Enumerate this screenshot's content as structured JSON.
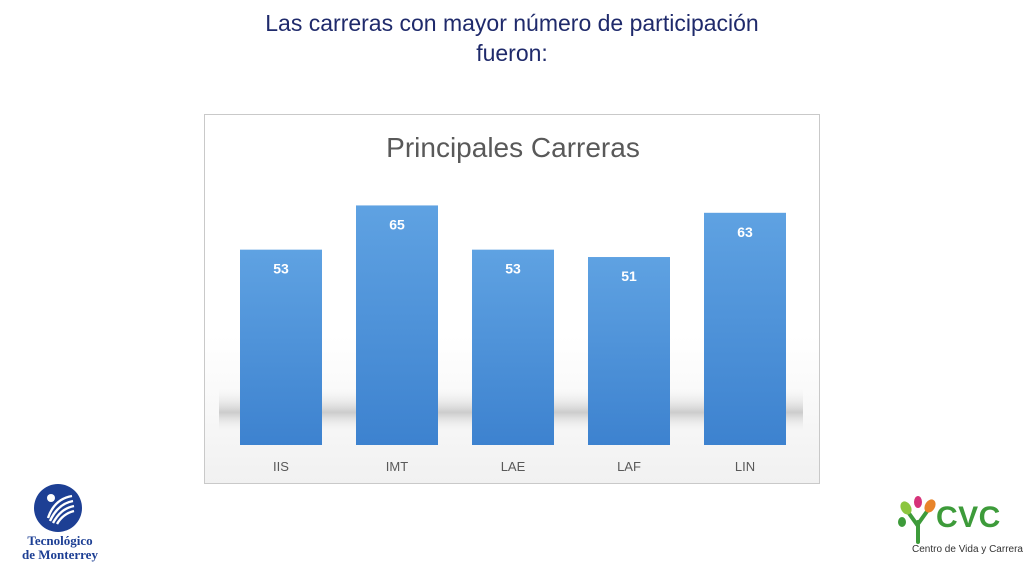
{
  "slide": {
    "title_line1": "Las carreras con mayor número de participación",
    "title_line2": "fueron:"
  },
  "chart_data": {
    "type": "bar",
    "title": "Principales Carreras",
    "categories": [
      "IIS",
      "IMT",
      "LAE",
      "LAF",
      "LIN"
    ],
    "values": [
      53,
      65,
      53,
      51,
      63
    ],
    "ylim": [
      0,
      70
    ],
    "grid": false,
    "legend": "none",
    "bar_color": "#4a8fd6",
    "bar_color_light": "#5fa2e2",
    "label_color": "#ffffff",
    "axis_label_color": "#595959",
    "title_color": "#595959"
  },
  "logos": {
    "tec_line1": "Tecnológico",
    "tec_line2": "de Monterrey",
    "tec_color": "#1d3f94",
    "cvc_word": "CVC",
    "cvc_subtitle": "Centro de Vida y Carrera",
    "cvc_green": "#3d9b3a",
    "cvc_orange": "#e8842a",
    "cvc_pink": "#d6337a",
    "cvc_lightgreen": "#8cc63f"
  }
}
